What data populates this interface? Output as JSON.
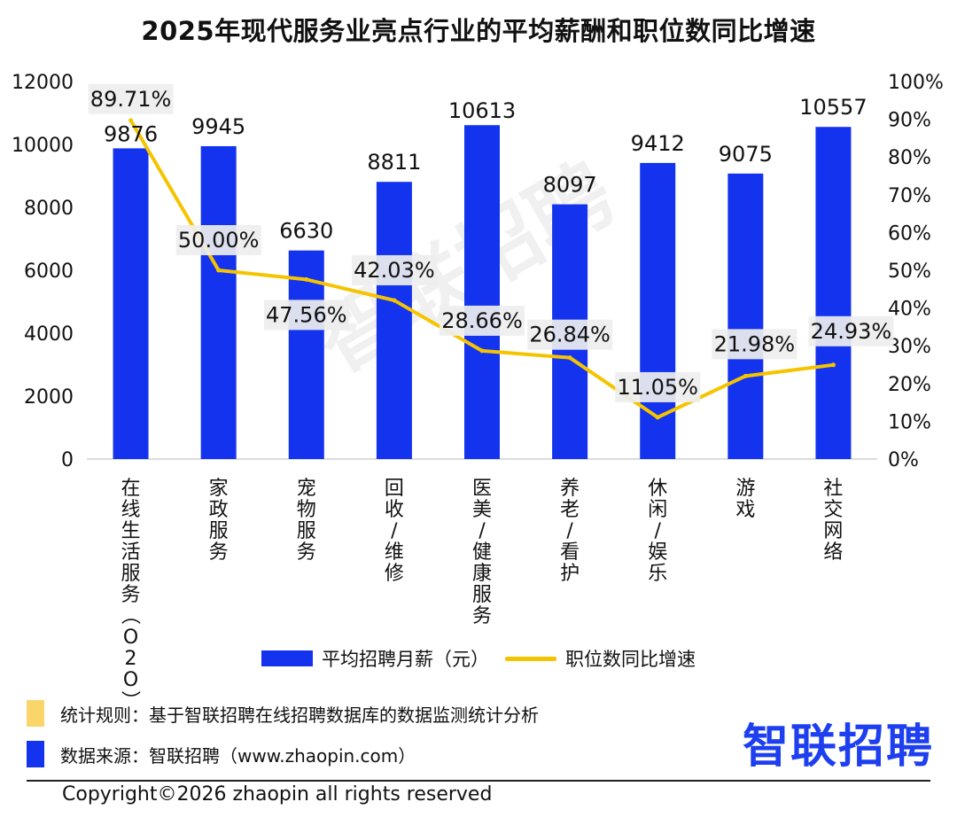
{
  "title": "2025年现代服务业亮点行业的平均薪酬和职位数同比增速",
  "watermark": "智联招聘",
  "chart_data": {
    "type": "bar",
    "title": "2025年现代服务业亮点行业的平均薪酬和职位数同比增速",
    "categories": [
      "在线生活服务（O2O）",
      "家政服务",
      "宠物服务",
      "回收/维修",
      "医美/健康服务",
      "养老/看护",
      "休闲/娱乐",
      "游戏",
      "社交网络"
    ],
    "series": [
      {
        "name": "平均招聘月薪（元）",
        "type": "bar",
        "axis": "left",
        "color": "#1433ee",
        "values": [
          9876,
          9945,
          6630,
          8811,
          10613,
          8097,
          9412,
          9075,
          10557
        ],
        "labels": [
          "9876",
          "9945",
          "6630",
          "8811",
          "10613",
          "8097",
          "9412",
          "9075",
          "10557"
        ]
      },
      {
        "name": "职位数同比增速",
        "type": "line",
        "axis": "right",
        "color": "#f5c400",
        "values": [
          89.71,
          50.0,
          47.56,
          42.03,
          28.66,
          26.84,
          11.05,
          21.98,
          24.93
        ],
        "labels": [
          "89.71%",
          "50.00%",
          "47.56%",
          "42.03%",
          "28.66%",
          "26.84%",
          "11.05%",
          "21.98%",
          "24.93%"
        ]
      }
    ],
    "y_left": {
      "ylim": [
        0,
        12000
      ],
      "ticks": [
        "0",
        "2000",
        "4000",
        "6000",
        "8000",
        "10000",
        "12000"
      ]
    },
    "y_right": {
      "ylim": [
        0,
        100
      ],
      "ticks": [
        "0%",
        "10%",
        "20%",
        "30%",
        "40%",
        "50%",
        "60%",
        "70%",
        "80%",
        "90%",
        "100%"
      ]
    },
    "grid": false,
    "legend": "bottom"
  },
  "notes": {
    "rule": "统计规则：基于智联招聘在线招聘数据库的数据监测统计分析",
    "source": "数据来源：智联招聘（www.zhaopin.com）",
    "rule_color": "#f9d56a",
    "source_color": "#1433ee"
  },
  "logo_text": "智联招聘",
  "copyright": "Copyright©2026 zhaopin all rights reserved"
}
